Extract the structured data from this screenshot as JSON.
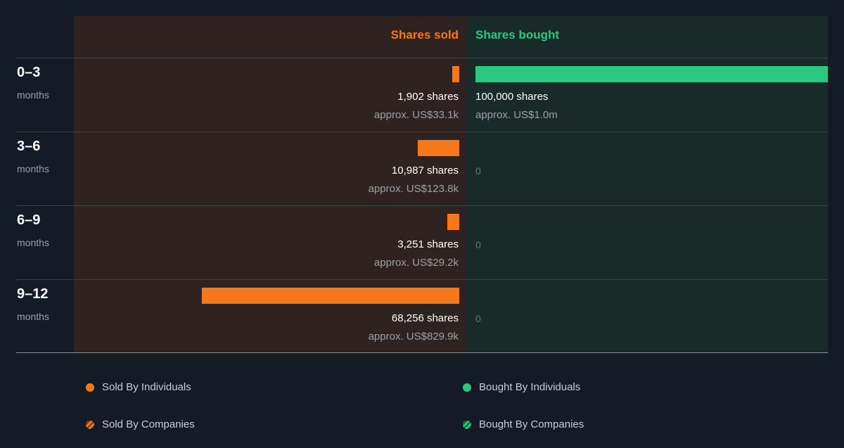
{
  "headers": {
    "sold": "Shares sold",
    "bought": "Shares bought"
  },
  "colors": {
    "sold": "#f7781a",
    "bought": "#2ec780"
  },
  "rows": [
    {
      "period": "0–3",
      "unit": "months",
      "sold_shares": "1,902 shares",
      "sold_value": "approx. US$33.1k",
      "bought_shares": "100,000 shares",
      "bought_value": "approx. US$1.0m",
      "bought_zero": ""
    },
    {
      "period": "3–6",
      "unit": "months",
      "sold_shares": "10,987 shares",
      "sold_value": "approx. US$123.8k",
      "bought_shares": "",
      "bought_value": "",
      "bought_zero": "0"
    },
    {
      "period": "6–9",
      "unit": "months",
      "sold_shares": "3,251 shares",
      "sold_value": "approx. US$29.2k",
      "bought_shares": "",
      "bought_value": "",
      "bought_zero": "0"
    },
    {
      "period": "9–12",
      "unit": "months",
      "sold_shares": "68,256 shares",
      "sold_value": "approx. US$829.9k",
      "bought_shares": "",
      "bought_value": "",
      "bought_zero": "0"
    }
  ],
  "legend": {
    "sold_individuals": "Sold By Individuals",
    "bought_individuals": "Bought By Individuals",
    "sold_companies": "Sold By Companies",
    "bought_companies": "Bought By Companies"
  },
  "chart_data": {
    "type": "bar",
    "categories": [
      "0–3 months",
      "3–6 months",
      "6–9 months",
      "9–12 months"
    ],
    "series": [
      {
        "name": "Shares sold",
        "values": [
          1902,
          10987,
          3251,
          68256
        ]
      },
      {
        "name": "Shares bought",
        "values": [
          100000,
          0,
          0,
          0
        ]
      }
    ],
    "value_labels": {
      "sold": [
        "approx. US$33.1k",
        "approx. US$123.8k",
        "approx. US$29.2k",
        "approx. US$829.9k"
      ],
      "bought": [
        "approx. US$1.0m",
        "",
        "",
        ""
      ]
    },
    "legend": [
      "Sold By Individuals",
      "Bought By Individuals",
      "Sold By Companies",
      "Bought By Companies"
    ]
  }
}
